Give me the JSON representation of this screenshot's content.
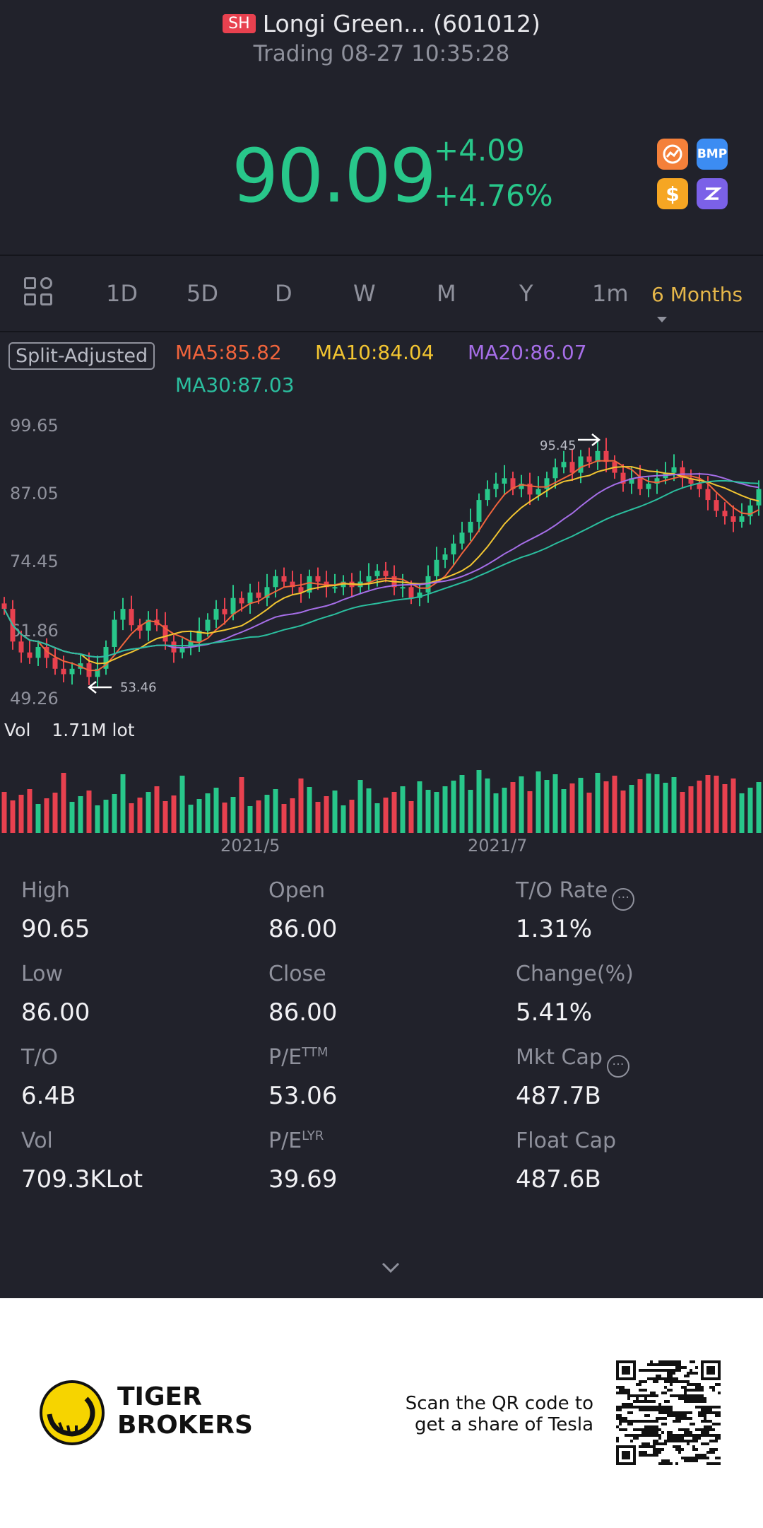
{
  "header": {
    "exchange_badge": "SH",
    "title": "Longi Green... (601012)",
    "status": "Trading 08-27 10:35:28",
    "price": "90.09",
    "change": "+4.09",
    "change_pct": "+4.76%",
    "app_icons": [
      "chart-app-icon",
      "bmp-icon",
      "dollar-icon",
      "z-icon"
    ],
    "bmp_label": "BMP",
    "dollar_label": "$"
  },
  "tabs": {
    "items": [
      "1D",
      "5D",
      "D",
      "W",
      "M",
      "Y",
      "1m"
    ],
    "selected": "6 Months"
  },
  "indicators": {
    "split_label": "Split-Adjusted",
    "ma5": "MA5:85.82",
    "ma10": "MA10:84.04",
    "ma20": "MA20:86.07",
    "ma30": "MA30:87.03"
  },
  "colors": {
    "up": "#28c78a",
    "down": "#e8414f",
    "ma5": "#f0643c",
    "ma10": "#f2c531",
    "ma20": "#a66ee8",
    "ma30": "#2bbf9f",
    "accent": "#e6b74a"
  },
  "chart": {
    "y_ticks": [
      "99.65",
      "87.05",
      "74.45",
      "61.86",
      "49.26"
    ],
    "high_annotation": "95.45",
    "low_annotation": "53.46",
    "vol_label": "Vol",
    "vol_value": "1.71M lot",
    "x_ticks": [
      "2021/5",
      "2021/7"
    ]
  },
  "stats": [
    {
      "label": "High",
      "value": "90.65"
    },
    {
      "label": "Open",
      "value": "86.00"
    },
    {
      "label": "T/O Rate",
      "value": "1.31%"
    },
    {
      "label": "Low",
      "value": "86.00"
    },
    {
      "label": "Close",
      "value": "86.00"
    },
    {
      "label": "Change(%)",
      "value": "5.41%"
    },
    {
      "label": "T/O",
      "value": "6.4B"
    },
    {
      "label": "P/E",
      "value": "53.06"
    },
    {
      "label": "Mkt Cap",
      "value": "487.7B"
    },
    {
      "label": "Vol",
      "value": "709.3KLot"
    },
    {
      "label": "P/E",
      "value": "39.69"
    },
    {
      "label": "Float Cap",
      "value": "487.6B"
    }
  ],
  "pe_sup": [
    "TTM",
    "LYR"
  ],
  "footer": {
    "brand_line1": "TIGER",
    "brand_line2": "BROKERS",
    "scan_line1": "Scan the QR code to",
    "scan_line2": "get a share of Tesla"
  },
  "chart_data": {
    "type": "candlestick",
    "y_range": [
      49.26,
      99.65
    ],
    "close": [
      66,
      60,
      58,
      57,
      59,
      57,
      55,
      54,
      55,
      56,
      53.5,
      55,
      59,
      64,
      66,
      63,
      62,
      64,
      63,
      60,
      58,
      59,
      60,
      62,
      64,
      66,
      65,
      68,
      67,
      69,
      68,
      70,
      72,
      71,
      70,
      69,
      72,
      71,
      70,
      70,
      71,
      70,
      71,
      72,
      73,
      72,
      70,
      70,
      68,
      69,
      72,
      75,
      76,
      78,
      80,
      82,
      86,
      88,
      89,
      90,
      88,
      89,
      87,
      88,
      90,
      92,
      93,
      91,
      94,
      93,
      95,
      93,
      91,
      89,
      90,
      88,
      89,
      90,
      91,
      92,
      90,
      89,
      88,
      86,
      84,
      83,
      82,
      83,
      85,
      88
    ]
  }
}
